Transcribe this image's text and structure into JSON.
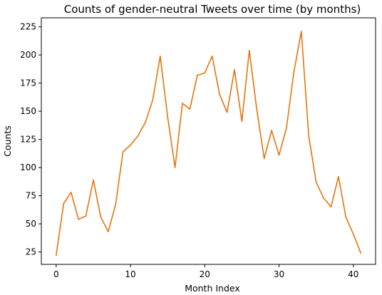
{
  "chart_data": {
    "type": "line",
    "title": "Counts of gender-neutral Tweets over time (by months)",
    "xlabel": "Month Index",
    "ylabel": "Counts",
    "xlim": [
      -2,
      43
    ],
    "ylim": [
      14,
      233
    ],
    "xticks": [
      0,
      10,
      20,
      30,
      40
    ],
    "yticks": [
      25,
      50,
      75,
      100,
      125,
      150,
      175,
      200,
      225
    ],
    "grid": false,
    "legend": "none",
    "series": [
      {
        "color": "#e8730c",
        "x": [
          0,
          1,
          2,
          3,
          4,
          5,
          6,
          7,
          8,
          9,
          10,
          11,
          12,
          13,
          14,
          15,
          16,
          17,
          18,
          19,
          20,
          21,
          22,
          23,
          24,
          25,
          26,
          27,
          28,
          29,
          30,
          31,
          32,
          33,
          34,
          35,
          36,
          37,
          38,
          39,
          40,
          41
        ],
        "values": [
          22,
          68,
          78,
          54,
          57,
          89,
          56,
          43,
          67,
          114,
          120,
          128,
          140,
          160,
          199,
          145,
          100,
          157,
          152,
          182,
          184,
          199,
          165,
          149,
          187,
          141,
          204,
          152,
          108,
          133,
          111,
          135,
          185,
          221,
          128,
          87,
          73,
          65,
          92,
          56,
          41,
          24
        ]
      }
    ]
  }
}
